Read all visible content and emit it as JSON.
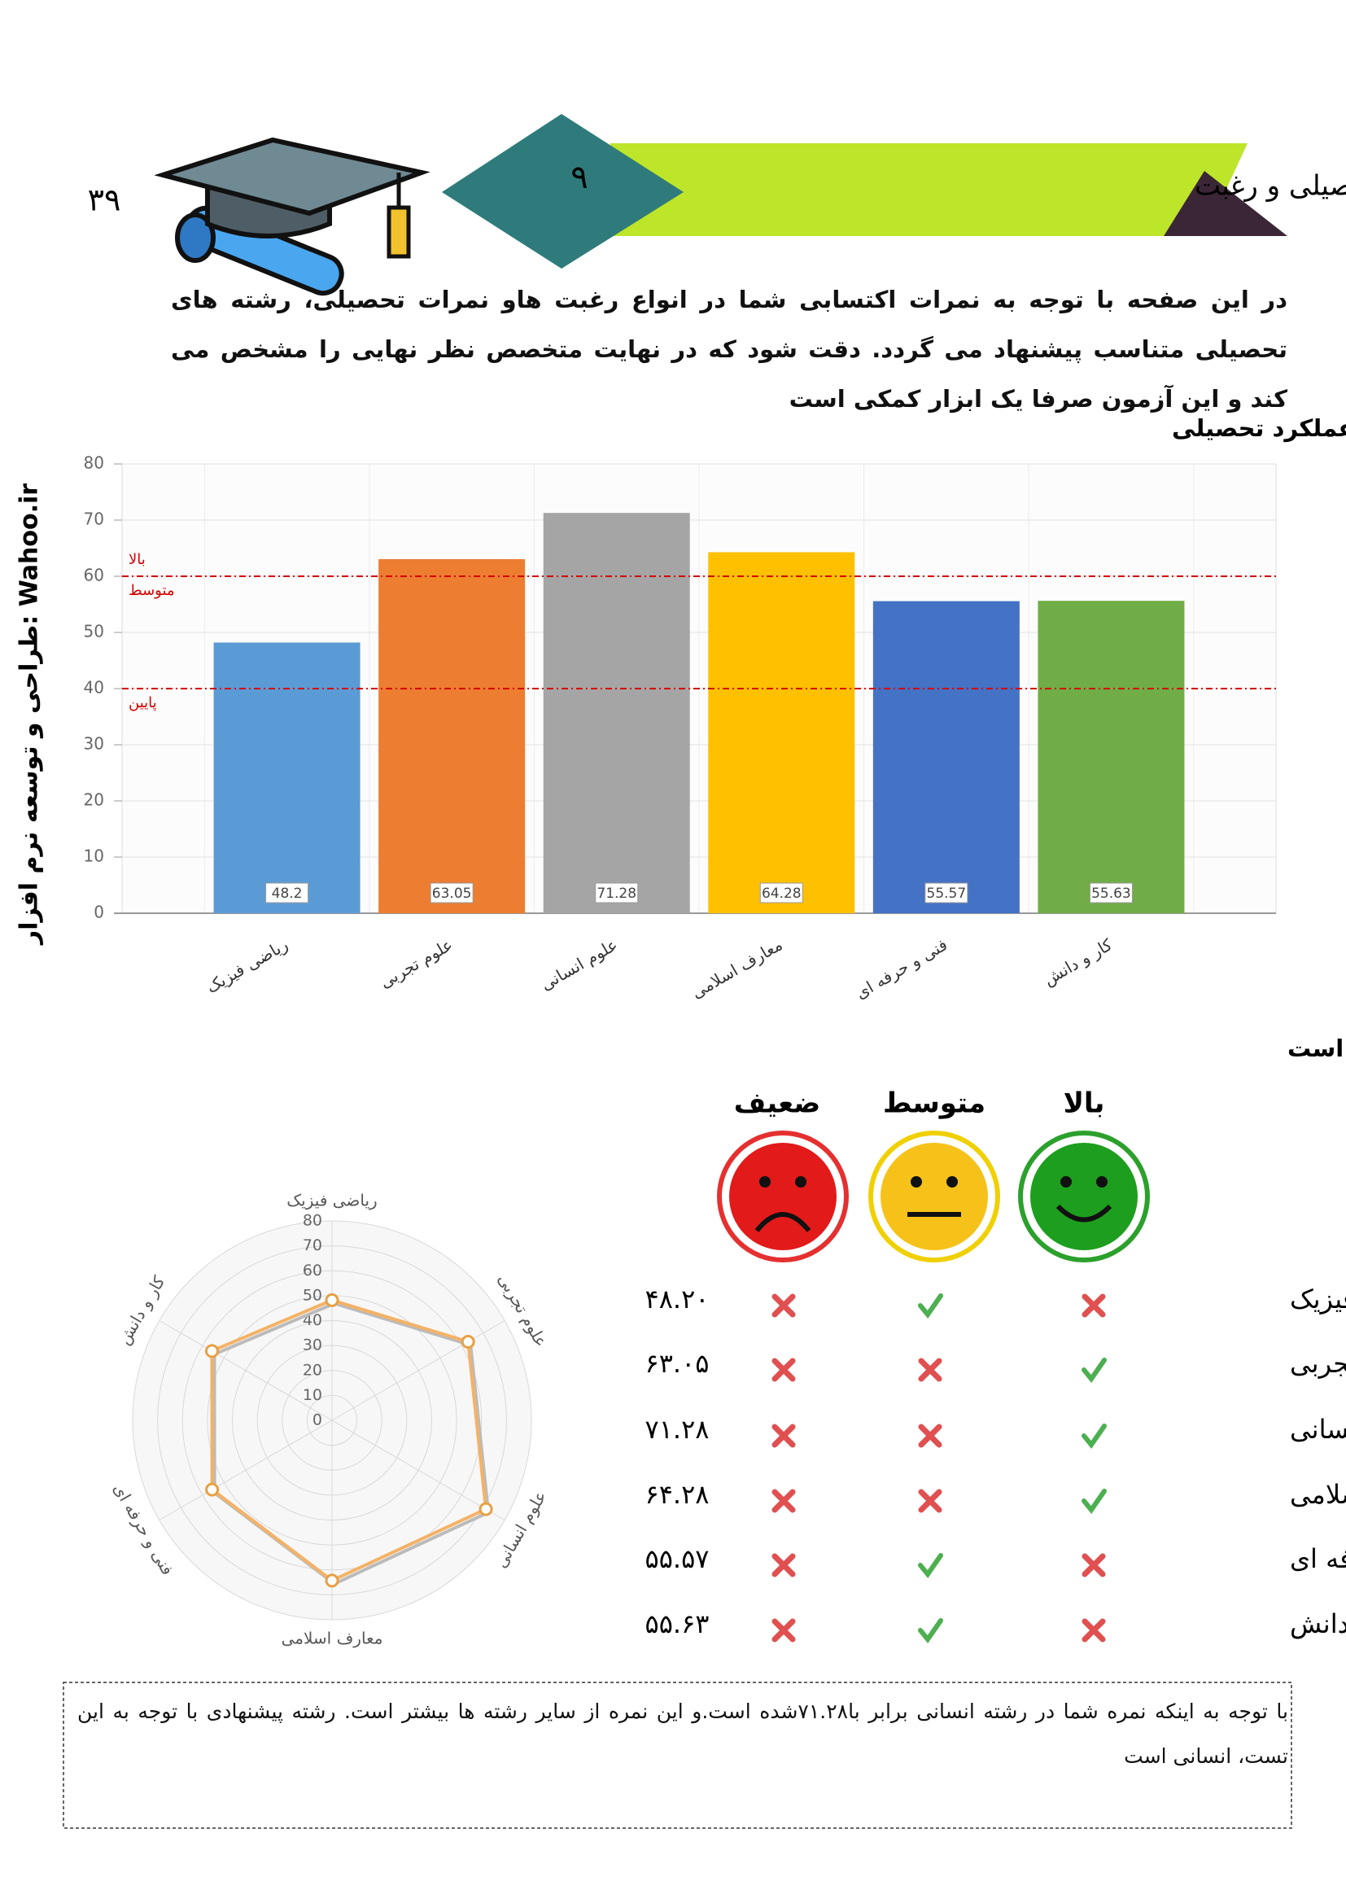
{
  "header": {
    "page_number": "۳۹",
    "section_number": "۹",
    "title": "انتخاب رشته بر مبنای عملکرد تحصیلی و رغبت"
  },
  "side_text": "طراحی و توسعه نرم افزار: Wahoo.ir",
  "intro": "در این صفحه با توجه به نمرات اکتسابی شما در انواع رغبت هاو نمرات تحصیلی، رشته های تحصیلی متناسب پیشنهاد می گردد. دقت شود که در نهایت متخصص نظر نهایی را مشخص می کند و این آزمون صرفا یک ابزار کمکی است",
  "chart_data": [
    {
      "type": "bar",
      "title": "نمودار ستونی به منظور مقایسه رشته های تحصیلی براساس نمرات رغبت و عملکرد تحصیلی",
      "categories": [
        "ریاضی فیزیک",
        "علوم تجربی",
        "علوم انسانی",
        "معارف اسلامی",
        "فنی و حرفه ای",
        "کار و دانش"
      ],
      "values": [
        48.2,
        63.05,
        71.28,
        64.28,
        55.57,
        55.63
      ],
      "colors": [
        "#5b9bd5",
        "#ed7d31",
        "#a5a5a5",
        "#ffc000",
        "#4472c4",
        "#70ad47"
      ],
      "ylim": [
        0,
        80
      ],
      "yticks": [
        0,
        10,
        20,
        30,
        40,
        50,
        60,
        70,
        80
      ],
      "grid": true,
      "reference_lines": [
        {
          "value": 60,
          "labels": [
            "بالا",
            "متوسط"
          ],
          "color": "#d40000"
        },
        {
          "value": 40,
          "labels": [
            "پایین"
          ],
          "color": "#d40000"
        }
      ]
    },
    {
      "type": "radar",
      "categories": [
        "ریاضی فیزیک",
        "علوم تجربی",
        "علوم انسانی",
        "معارف اسلامی",
        "فنی و حرفه ای",
        "کار و دانش"
      ],
      "values": [
        48.2,
        63.05,
        71.28,
        64.28,
        55.57,
        55.63
      ],
      "color": "#f4b266",
      "rlim": [
        0,
        80
      ],
      "rticks": [
        0,
        10,
        20,
        30,
        40,
        50,
        60,
        70,
        80
      ]
    }
  ],
  "subheading": "در این صفحه تعامل رغبت و نمرات شما به منظور انتخاب رشته اورده شده است",
  "table": {
    "headers": [
      "بالا",
      "متوسط",
      "ضعیف"
    ],
    "rows": [
      {
        "name": "ریاضی فیزیک",
        "high": false,
        "medium": true,
        "low": false,
        "score": "۴۸.۲۰"
      },
      {
        "name": "علوم تجربی",
        "high": true,
        "medium": false,
        "low": false,
        "score": "۶۳.۰۵"
      },
      {
        "name": "علوم انسانی",
        "high": true,
        "medium": false,
        "low": false,
        "score": "۷۱.۲۸"
      },
      {
        "name": "معارف اسلامی",
        "high": true,
        "medium": false,
        "low": false,
        "score": "۶۴.۲۸"
      },
      {
        "name": "فنی و حرفه ای",
        "high": false,
        "medium": true,
        "low": false,
        "score": "۵۵.۵۷"
      },
      {
        "name": "کار و دانش",
        "high": false,
        "medium": true,
        "low": false,
        "score": "۵۵.۶۳"
      }
    ]
  },
  "conclusion": "با توجه به اینکه نمره شما در رشته انسانی برابر با۷۱.۲۸شده است.و این نمره از سایر رشته ها بیشتر است. رشته پیشنهادی با توجه به این تست، انسانی است"
}
